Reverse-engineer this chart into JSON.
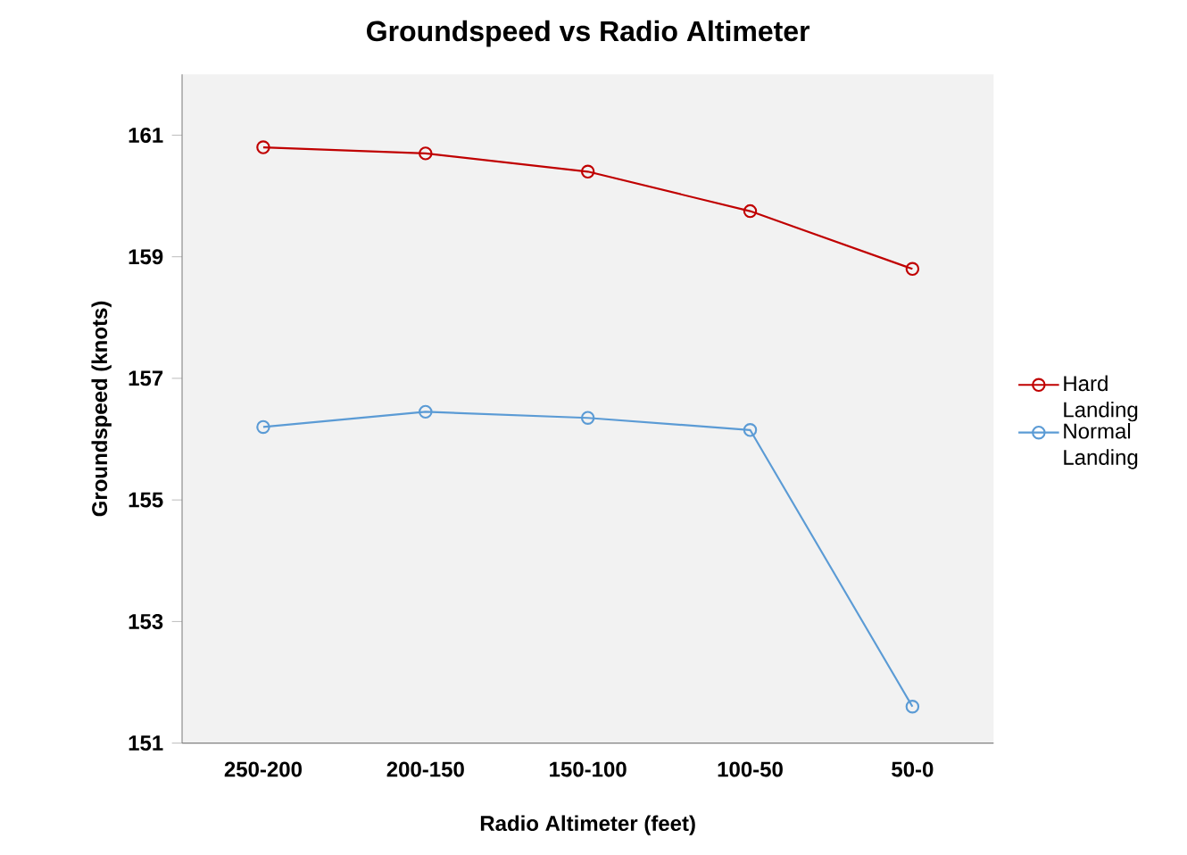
{
  "chart_data": {
    "type": "line",
    "title": "Groundspeed vs Radio Altimeter",
    "xlabel": "Radio Altimeter (feet)",
    "ylabel": "Groundspeed (knots)",
    "categories": [
      "250-200",
      "200-150",
      "150-100",
      "100-50",
      "50-0"
    ],
    "series": [
      {
        "name": "Hard Landing",
        "color": "#c00000",
        "values": [
          160.8,
          160.7,
          160.4,
          159.75,
          158.8
        ]
      },
      {
        "name": "Normal Landing",
        "color": "#5b9bd5",
        "values": [
          156.2,
          156.45,
          156.35,
          156.15,
          151.6
        ]
      }
    ],
    "ylim": [
      151,
      162
    ],
    "yticks": [
      151,
      153,
      155,
      157,
      159,
      161
    ],
    "marker": "circle",
    "legend": "right",
    "grid": false
  }
}
